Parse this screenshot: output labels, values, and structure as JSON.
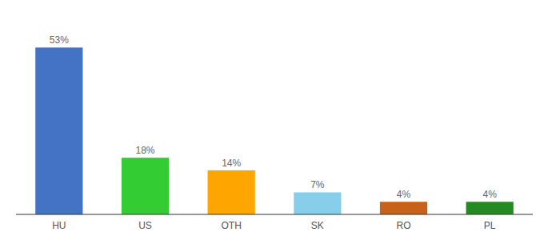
{
  "chart_data": {
    "type": "bar",
    "categories": [
      "HU",
      "US",
      "OTH",
      "SK",
      "RO",
      "PL"
    ],
    "values": [
      53,
      18,
      14,
      7,
      4,
      4
    ],
    "value_labels": [
      "53%",
      "18%",
      "14%",
      "7%",
      "4%",
      "4%"
    ],
    "colors": [
      "#4472C4",
      "#33CC33",
      "#FFA500",
      "#87CEEB",
      "#C8621A",
      "#228B22"
    ],
    "ylim": [
      0,
      62
    ],
    "data_labels": true,
    "tick_labels": "x"
  }
}
